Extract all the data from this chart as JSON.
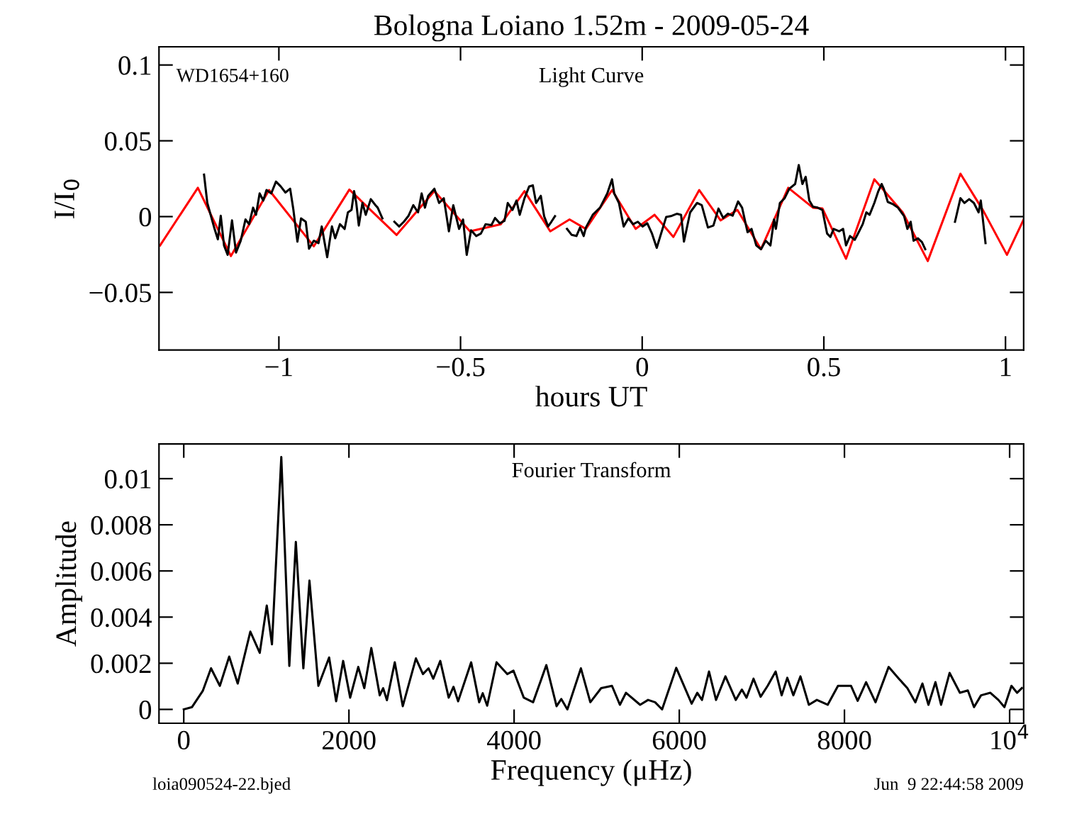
{
  "chart_data": [
    {
      "type": "line",
      "title": "Bologna Loiano 1.52m - 2009-05-24",
      "xlabel": "hours UT",
      "ylabel": "I/I$_{0}$",
      "annotations": [
        "WD1654+160",
        "Light Curve"
      ],
      "xlim": [
        -1.33,
        1.05
      ],
      "ylim": [
        -0.088,
        0.112
      ],
      "xticks": [
        {
          "value": -1,
          "label": "−1"
        },
        {
          "value": -0.5,
          "label": "−0.5"
        },
        0,
        0.5,
        1
      ],
      "yticks": [
        {
          "value": -0.05,
          "label": "−0.05"
        },
        0,
        0.05,
        0.1
      ],
      "series": [
        {
          "color": "#ff0000",
          "x": [
            -1.327,
            -1.223,
            -1.132,
            -1.027,
            -0.904,
            -0.806,
            -0.676,
            -0.572,
            -0.474,
            -0.389,
            -0.324,
            -0.253,
            -0.2,
            -0.155,
            -0.083,
            -0.018,
            0.034,
            0.086,
            0.157,
            0.216,
            0.262,
            0.327,
            0.402,
            0.47,
            0.496,
            0.561,
            0.639,
            0.717,
            0.786,
            0.876,
            0.939,
            1.004,
            1.05
          ],
          "values": [
            -0.019,
            0.019,
            -0.026,
            0.0175,
            -0.0196,
            0.0178,
            -0.0121,
            0.0168,
            -0.0097,
            -0.005,
            0.0168,
            -0.0097,
            -0.0019,
            -0.0081,
            0.0175,
            -0.0081,
            0.0012,
            -0.0134,
            0.0175,
            -0.0025,
            0.0044,
            -0.0215,
            0.019,
            0.0059,
            0.0054,
            -0.0278,
            0.0246,
            0.0028,
            -0.0293,
            0.0283,
            0.0038,
            -0.0252,
            -0.0019
          ]
        },
        {
          "color": "#000000",
          "x": [
            -1.206,
            -1.197,
            -1.177,
            -1.168,
            -1.16,
            -1.151,
            -1.141,
            -1.129,
            -1.118,
            -1.105,
            -1.092,
            -1.082,
            -1.071,
            -1.063,
            -1.053,
            -1.043,
            -1.034,
            -1.021,
            -1.008,
            -0.995,
            -0.982,
            -0.969,
            -0.96,
            -0.949,
            -0.939,
            -0.926,
            -0.917,
            -0.904,
            -0.891,
            -0.882,
            -0.867,
            -0.854,
            -0.845,
            -0.832,
            -0.819,
            -0.81,
            -0.8,
            -0.793,
            -0.787,
            -0.78,
            -0.77,
            -0.761,
            -0.747,
            -0.734,
            -0.728,
            -0.715,
            -0.7,
            -0.682,
            -0.669,
            -0.656,
            -0.643,
            -0.63,
            -0.617,
            -0.607,
            -0.598,
            -0.589,
            -0.572,
            -0.559,
            -0.546,
            -0.532,
            -0.52,
            -0.504,
            -0.493,
            -0.483,
            -0.471,
            -0.457,
            -0.444,
            -0.431,
            -0.415,
            -0.405,
            -0.392,
            -0.379,
            -0.37,
            -0.357,
            -0.346,
            -0.337,
            -0.324,
            -0.311,
            -0.301,
            -0.292,
            -0.279,
            -0.27,
            -0.259,
            -0.25,
            -0.24,
            -0.22,
            -0.207,
            -0.194,
            -0.181,
            -0.171,
            -0.161,
            -0.155,
            -0.136,
            -0.116,
            -0.096,
            -0.083,
            -0.077,
            -0.064,
            -0.051,
            -0.038,
            -0.025,
            -0.012,
            0.001,
            0.014,
            0.027,
            0.04,
            0.066,
            0.079,
            0.096,
            0.107,
            0.115,
            0.132,
            0.151,
            0.164,
            0.181,
            0.196,
            0.21,
            0.223,
            0.236,
            0.249,
            0.264,
            0.275,
            0.29,
            0.301,
            0.314,
            0.327,
            0.34,
            0.353,
            0.363,
            0.368,
            0.379,
            0.392,
            0.405,
            0.421,
            0.431,
            0.441,
            0.45,
            0.46,
            0.47,
            0.483,
            0.496,
            0.509,
            0.518,
            0.527,
            0.542,
            0.553,
            0.561,
            0.572,
            0.585,
            0.594,
            0.607,
            0.617,
            0.626,
            0.639,
            0.65,
            0.659,
            0.665,
            0.676,
            0.691,
            0.704,
            0.721,
            0.73,
            0.739,
            0.747,
            0.759,
            0.77,
            0.779,
            0.82,
            0.861,
            0.876,
            0.887,
            0.9,
            0.913,
            0.926,
            0.932,
            0.945
          ],
          "values": [
            0.0277,
            0.009,
            -0.0081,
            -0.015,
            0.0006,
            -0.019,
            -0.0252,
            -0.0025,
            -0.0237,
            -0.0159,
            -0.0019,
            -0.005,
            0.0059,
            0.0012,
            0.0153,
            0.0106,
            0.0175,
            0.0153,
            0.0231,
            0.0199,
            0.0159,
            0.0184,
            0.0044,
            -0.0165,
            -0.0012,
            -0.0034,
            -0.0212,
            -0.0159,
            -0.0175,
            -0.0065,
            -0.0268,
            -0.0065,
            -0.0143,
            -0.005,
            -0.0081,
            0.0028,
            0.0044,
            0.0168,
            0.009,
            -0.0059,
            0.009,
            0.0012,
            0.0115,
            0.0075,
            0.0059,
            -0.0012,
            null,
            -0.0034,
            -0.0065,
            -0.0034,
            0.0006,
            0.0075,
            0.0028,
            0.0153,
            0.0059,
            0.0137,
            0.0184,
            0.009,
            0.0121,
            -0.0097,
            0.0075,
            -0.0081,
            -0.0019,
            -0.0252,
            -0.009,
            -0.0128,
            -0.0112,
            -0.005,
            -0.0056,
            -0.0009,
            -0.0044,
            -0.0028,
            0.009,
            0.0044,
            0.0106,
            0.0012,
            0.0121,
            0.0199,
            0.0206,
            0.009,
            0.0137,
            0.0003,
            -0.0065,
            -0.0034,
            0.0003,
            null,
            -0.0081,
            -0.0121,
            -0.0128,
            -0.0072,
            -0.0128,
            -0.0072,
            0.0012,
            0.0059,
            0.0153,
            0.0246,
            0.0153,
            0.009,
            -0.0065,
            -0.0012,
            -0.005,
            -0.0034,
            -0.0065,
            -0.0044,
            -0.0112,
            -0.0206,
            -0.0003,
            0.0003,
            0.0019,
            0.0012,
            -0.0165,
            0.0028,
            0.009,
            0.0075,
            -0.0072,
            -0.0059,
            0.0053,
            -0.0009,
            0.0019,
            0.0006,
            0.01,
            0.0059,
            -0.0103,
            -0.0081,
            -0.019,
            -0.0215,
            -0.0159,
            -0.019,
            -0.0019,
            -0.0081,
            0.009,
            0.0121,
            0.0184,
            0.0215,
            0.034,
            0.0215,
            0.0262,
            0.0106,
            0.0065,
            0.0059,
            0.0044,
            -0.0112,
            -0.0134,
            -0.0081,
            -0.0097,
            -0.0081,
            -0.019,
            -0.0128,
            -0.0153,
            -0.0112,
            -0.005,
            0.0028,
            0.0012,
            0.009,
            0.0168,
            0.0215,
            0.0184,
            0.0097,
            0.0081,
            0.0059,
            0.0003,
            -0.0081,
            -0.0034,
            -0.0159,
            -0.0143,
            -0.0168,
            -0.0215,
            null,
            -0.0034,
            0.0121,
            0.009,
            0.0115,
            0.009,
            0.0028,
            0.0106,
            -0.0175
          ]
        }
      ]
    },
    {
      "type": "line",
      "xlabel": "Frequency (μHz)",
      "ylabel": "Amplitude",
      "annotations": [
        "Fourier Transform",
        "loia090524-22.bjed",
        "Jun  9 22:44:58 2009"
      ],
      "xlim": [
        -300,
        10170
      ],
      "ylim": [
        -0.0006,
        0.0115
      ],
      "xticks": [
        0,
        2000,
        4000,
        6000,
        8000,
        {
          "value": 10000,
          "label": "10$^{4}$"
        }
      ],
      "yticks": [
        0,
        0.002,
        0.004,
        0.006,
        0.008,
        0.01
      ],
      "series": [
        {
          "color": "#000000",
          "x": [
            0,
            100,
            230,
            330,
            437,
            550,
            653,
            806,
            920,
            1005,
            1068,
            1181,
            1278,
            1357,
            1448,
            1522,
            1630,
            1760,
            1845,
            1930,
            2015,
            2113,
            2186,
            2271,
            2373,
            2414,
            2460,
            2555,
            2652,
            2811,
            2896,
            2964,
            3021,
            3106,
            3208,
            3266,
            3322,
            3480,
            3577,
            3620,
            3674,
            3787,
            3918,
            3992,
            4117,
            4230,
            4390,
            4514,
            4571,
            4645,
            4809,
            4923,
            5054,
            5185,
            5281,
            5355,
            5526,
            5622,
            5707,
            5792,
            5963,
            6150,
            6218,
            6275,
            6360,
            6445,
            6559,
            6684,
            6758,
            6814,
            6899,
            6985,
            7070,
            7167,
            7240,
            7308,
            7381,
            7467,
            7569,
            7666,
            7797,
            7922,
            8080,
            8160,
            8262,
            8376,
            8535,
            8659,
            8762,
            8859,
            8944,
            9017,
            9102,
            9170,
            9273,
            9398,
            9494,
            9569,
            9654,
            9767,
            9864,
            9937,
            10022,
            10090,
            10148
          ],
          "values": [
            0,
            0.0001,
            0.0008,
            0.00178,
            0.00102,
            0.00229,
            0.00112,
            0.00337,
            0.00245,
            0.0045,
            0.00282,
            0.01094,
            0.00188,
            0.00726,
            0.00178,
            0.00558,
            0.00102,
            0.00225,
            0.00035,
            0.0021,
            0.00051,
            0.00184,
            0.00092,
            0.00266,
            0.00061,
            0.00092,
            0.0004,
            0.00204,
            0.00014,
            0.00221,
            0.00153,
            0.00178,
            0.00133,
            0.0021,
            0.00051,
            0.00098,
            0.00035,
            0.00204,
            0.00031,
            0.0007,
            0.00016,
            0.00204,
            0.00153,
            0.00168,
            0.00051,
            0.00031,
            0.00192,
            0.00014,
            0.00045,
            0,
            0.00178,
            0.00031,
            0.00092,
            0.00102,
            0.0002,
            0.00072,
            0.0002,
            0.00041,
            0.00031,
            0,
            0.0018,
            0.00025,
            0.00072,
            0.00041,
            0.00164,
            0.00041,
            0.00143,
            0.00041,
            0.00086,
            0.00051,
            0.00133,
            0.00055,
            0.00102,
            0.00164,
            0.00061,
            0.00137,
            0.00061,
            0.00143,
            0.0002,
            0.00041,
            0.0002,
            0.00102,
            0.00102,
            0.00037,
            0.00118,
            0.00031,
            0.00184,
            0.00133,
            0.00092,
            0.00031,
            0.00112,
            0.0002,
            0.00118,
            0.0002,
            0.00158,
            0.00072,
            0.00082,
            0.0001,
            0.00061,
            0.00072,
            0.00041,
            0.0001,
            0.00102,
            0.00072,
            0.00092
          ]
        }
      ]
    }
  ]
}
